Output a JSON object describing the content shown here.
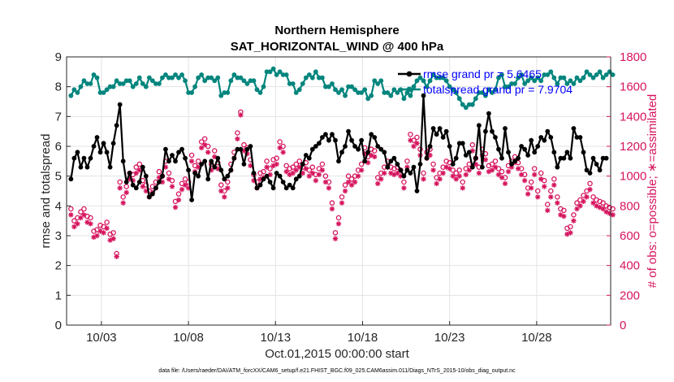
{
  "chart_data": {
    "type": "line",
    "title": "Northern Hemisphere",
    "subtitle": "SAT_HORIZONTAL_WIND @ 400 hPa",
    "xlabel": "Oct.01,2015 00:00:00 start",
    "ylabel": "rmse and totalspread",
    "y2label": "# of obs: o=possible; ∗=assimilated",
    "footnote": "data file: /Users/raeder/DAI/ATM_forcXX/CAM6_setup/f.e21.FHIST_BGC.f09_025.CAM6assim.011/Diags_NTrS_2015-10/obs_diag_output.nc",
    "xlim": [
      1.0,
      32.25
    ],
    "ylim": [
      0,
      9
    ],
    "y2lim": [
      0,
      1800
    ],
    "x_ticks": [
      3,
      8,
      13,
      18,
      23,
      28
    ],
    "x_tick_labels": [
      "10/03",
      "10/08",
      "10/13",
      "10/18",
      "10/23",
      "10/28"
    ],
    "y_ticks": [
      0,
      1,
      2,
      3,
      4,
      5,
      6,
      7,
      8,
      9
    ],
    "y2_ticks": [
      0,
      200,
      400,
      600,
      800,
      1000,
      1200,
      1400,
      1600,
      1800
    ],
    "grid": true,
    "colors": {
      "rmse": "#000000",
      "totalspread": "#00857d",
      "obs": "#d6145e",
      "legend_text": "#0000ff"
    },
    "legend": [
      {
        "label": "rmse grand pr = 5.6465",
        "color": "#000000"
      },
      {
        "label": "totalspread grand pr = 7.9704",
        "color": "#00857d"
      }
    ],
    "series": [
      {
        "name": "rmse",
        "axis": "left",
        "values": [
          4.9,
          5.6,
          5.8,
          5.3,
          5.6,
          5.3,
          5.6,
          6.0,
          6.3,
          5.8,
          6.1,
          5.8,
          5.3,
          6.1,
          6.7,
          7.4,
          5.5,
          4.8,
          5.1,
          4.7,
          4.6,
          4.8,
          5.3,
          5.0,
          4.3,
          4.4,
          4.6,
          4.8,
          5.0,
          5.9,
          5.5,
          5.7,
          5.5,
          5.8,
          5.9,
          5.6,
          5.2,
          4.2,
          5.1,
          5.0,
          5.4,
          5.5,
          4.9,
          5.5,
          5.3,
          5.6,
          5.2,
          4.9,
          5.0,
          5.2,
          5.6,
          5.9,
          5.9,
          5.4,
          5.9,
          6.0,
          5.1,
          4.6,
          4.7,
          4.9,
          5.0,
          4.8,
          4.6,
          5.1,
          5.0,
          4.8,
          4.6,
          4.7,
          4.6,
          4.9,
          5.0,
          5.4,
          5.7,
          5.6,
          5.9,
          6.0,
          6.1,
          6.3,
          6.4,
          6.2,
          6.4,
          6.2,
          5.5,
          5.8,
          6.0,
          6.5,
          6.2,
          6.0,
          5.9,
          6.2,
          5.5,
          5.8,
          6.4,
          6.3,
          6.0,
          5.9,
          5.8,
          5.3,
          5.5,
          5.6,
          5.4,
          5.2,
          5.0,
          5.2,
          5.1,
          5.3,
          4.5,
          5.4,
          7.7,
          5.6,
          6.0,
          6.6,
          6.4,
          6.6,
          6.3,
          6.5,
          6.0,
          5.4,
          5.6,
          6.1,
          6.1,
          5.7,
          5.8,
          5.3,
          5.6,
          6.7,
          5.3,
          6.5,
          7.1,
          6.5,
          6.3,
          5.9,
          5.6,
          6.6,
          5.8,
          5.4,
          5.5,
          5.6,
          6.0,
          5.9,
          5.7,
          6.2,
          5.8,
          6.0,
          6.3,
          6.2,
          6.5,
          6.3,
          5.8,
          5.3,
          5.6,
          5.6,
          5.8,
          5.6,
          6.6,
          6.3,
          6.3,
          5.8,
          5.2,
          5.1,
          5.6,
          5.4,
          5.2,
          5.6,
          5.6
        ]
      },
      {
        "name": "totalspread",
        "axis": "left",
        "values": [
          7.7,
          7.9,
          7.8,
          8.0,
          8.2,
          8.1,
          8.1,
          8.4,
          8.3,
          7.8,
          7.8,
          7.9,
          8.0,
          8.0,
          8.2,
          8.1,
          8.1,
          8.2,
          8.2,
          8.0,
          8.1,
          8.3,
          8.1,
          8.0,
          8.3,
          8.2,
          8.1,
          8.1,
          8.3,
          8.4,
          8.3,
          8.3,
          8.4,
          8.3,
          8.4,
          8.2,
          7.8,
          7.8,
          8.0,
          8.3,
          8.4,
          8.2,
          8.3,
          8.3,
          8.2,
          8.3,
          7.7,
          7.8,
          7.8,
          8.2,
          8.4,
          8.3,
          8.3,
          8.2,
          8.1,
          8.2,
          8.2,
          7.9,
          7.8,
          8.0,
          8.5,
          8.5,
          8.6,
          8.4,
          8.5,
          8.4,
          8.4,
          8.1,
          8.1,
          7.8,
          7.9,
          8.1,
          8.3,
          8.4,
          8.3,
          8.5,
          8.3,
          8.3,
          8.0,
          8.0,
          8.1,
          7.9,
          7.8,
          7.9,
          7.7,
          8.0,
          8.0,
          7.9,
          7.8,
          7.8,
          7.9,
          7.6,
          7.7,
          8.2,
          8.1,
          8.2,
          7.8,
          7.8,
          7.7,
          7.9,
          7.8,
          7.9,
          7.6,
          7.8,
          7.7,
          8.0,
          8.2,
          8.3,
          8.2,
          8.0,
          8.2,
          8.4,
          8.3,
          8.3,
          8.3,
          8.2,
          8.0,
          7.9,
          7.8,
          7.6,
          7.4,
          7.3,
          7.4,
          7.4,
          7.6,
          7.8,
          7.8,
          7.7,
          7.9,
          7.8,
          7.9,
          8.3,
          8.4,
          8.0,
          8.0,
          8.1,
          8.1,
          8.3,
          8.4,
          8.1,
          8.2,
          8.3,
          8.2,
          8.3,
          8.2,
          8.4,
          8.4,
          8.5,
          8.3,
          8.1,
          8.3,
          8.3,
          8.1,
          8.2,
          8.1,
          8.3,
          8.2,
          8.3,
          8.5,
          8.4,
          8.3,
          8.4,
          8.5,
          8.3,
          8.4,
          8.5,
          8.4
        ]
      },
      {
        "name": "obs possible",
        "axis": "right",
        "marker": "o",
        "values": [
          780,
          700,
          720,
          760,
          780,
          730,
          720,
          630,
          640,
          670,
          660,
          690,
          610,
          620,
          480,
          960,
          860,
          930,
          1020,
          1010,
          1060,
          1080,
          970,
          940,
          900,
          930,
          960,
          1030,
          1000,
          1100,
          1020,
          970,
          830,
          880,
          950,
          980,
          960,
          1140,
          1070,
          1100,
          1230,
          1250,
          1200,
          1080,
          1170,
          1090,
          940,
          900,
          960,
          1080,
          1160,
          1290,
          1430,
          1210,
          1190,
          1110,
          1010,
          960,
          1020,
          1030,
          1100,
          1050,
          1110,
          1120,
          1230,
          1200,
          1070,
          1050,
          1060,
          1080,
          1100,
          1060,
          1090,
          1040,
          1060,
          1010,
          1050,
          1080,
          1000,
          960,
          820,
          620,
          720,
          860,
          940,
          1000,
          980,
          1000,
          1040,
          1080,
          1190,
          1130,
          1180,
          1170,
          990,
          1020,
          1060,
          1100,
          1060,
          1050,
          1060,
          1040,
          960,
          1100,
          1280,
          1240,
          1260,
          1180,
          1020,
          1160,
          1180,
          1080,
          990,
          1020,
          1060,
          1100,
          1090,
          1040,
          1020,
          1040,
          960,
          1050,
          1080,
          1210,
          1120,
          1060,
          1180,
          1150,
          1070,
          1080,
          1100,
          1050,
          1030,
          990,
          1070,
          1100,
          1130,
          1090,
          1050,
          1010,
          920,
          960,
          1050,
          900,
          1020,
          970,
          810,
          900,
          980,
          860,
          780,
          770,
          650,
          660,
          740,
          820,
          840,
          870,
          900,
          950,
          860,
          840,
          830,
          820,
          800,
          790,
          780
        ]
      },
      {
        "name": "obs assimilated",
        "axis": "right",
        "marker": "*",
        "values": [
          740,
          660,
          680,
          720,
          740,
          690,
          680,
          590,
          600,
          630,
          620,
          650,
          570,
          580,
          460,
          920,
          820,
          890,
          980,
          970,
          1020,
          1040,
          930,
          900,
          860,
          890,
          920,
          990,
          960,
          1060,
          980,
          930,
          790,
          840,
          910,
          940,
          920,
          1100,
          1030,
          1060,
          1190,
          1210,
          1160,
          1040,
          1130,
          1050,
          900,
          860,
          920,
          1040,
          1120,
          1250,
          1410,
          1170,
          1150,
          1070,
          970,
          920,
          980,
          990,
          1060,
          1010,
          1070,
          1080,
          1190,
          1160,
          1030,
          1010,
          1020,
          1040,
          1060,
          1020,
          1050,
          1000,
          1020,
          970,
          1010,
          1040,
          960,
          920,
          780,
          580,
          680,
          820,
          900,
          960,
          940,
          960,
          1000,
          1040,
          1150,
          1090,
          1140,
          1130,
          950,
          980,
          1020,
          1060,
          1020,
          1010,
          1020,
          1000,
          920,
          1060,
          1240,
          1200,
          1220,
          1140,
          980,
          1120,
          1140,
          1040,
          950,
          980,
          1020,
          1060,
          1050,
          1000,
          980,
          1000,
          920,
          1010,
          1040,
          1170,
          1080,
          1020,
          1140,
          1110,
          1030,
          1040,
          1060,
          1010,
          990,
          950,
          1030,
          1060,
          1090,
          1050,
          1010,
          970,
          880,
          920,
          1010,
          860,
          980,
          930,
          770,
          860,
          940,
          820,
          740,
          730,
          610,
          620,
          700,
          780,
          800,
          830,
          860,
          910,
          820,
          800,
          790,
          780,
          760,
          750,
          740
        ]
      }
    ]
  }
}
